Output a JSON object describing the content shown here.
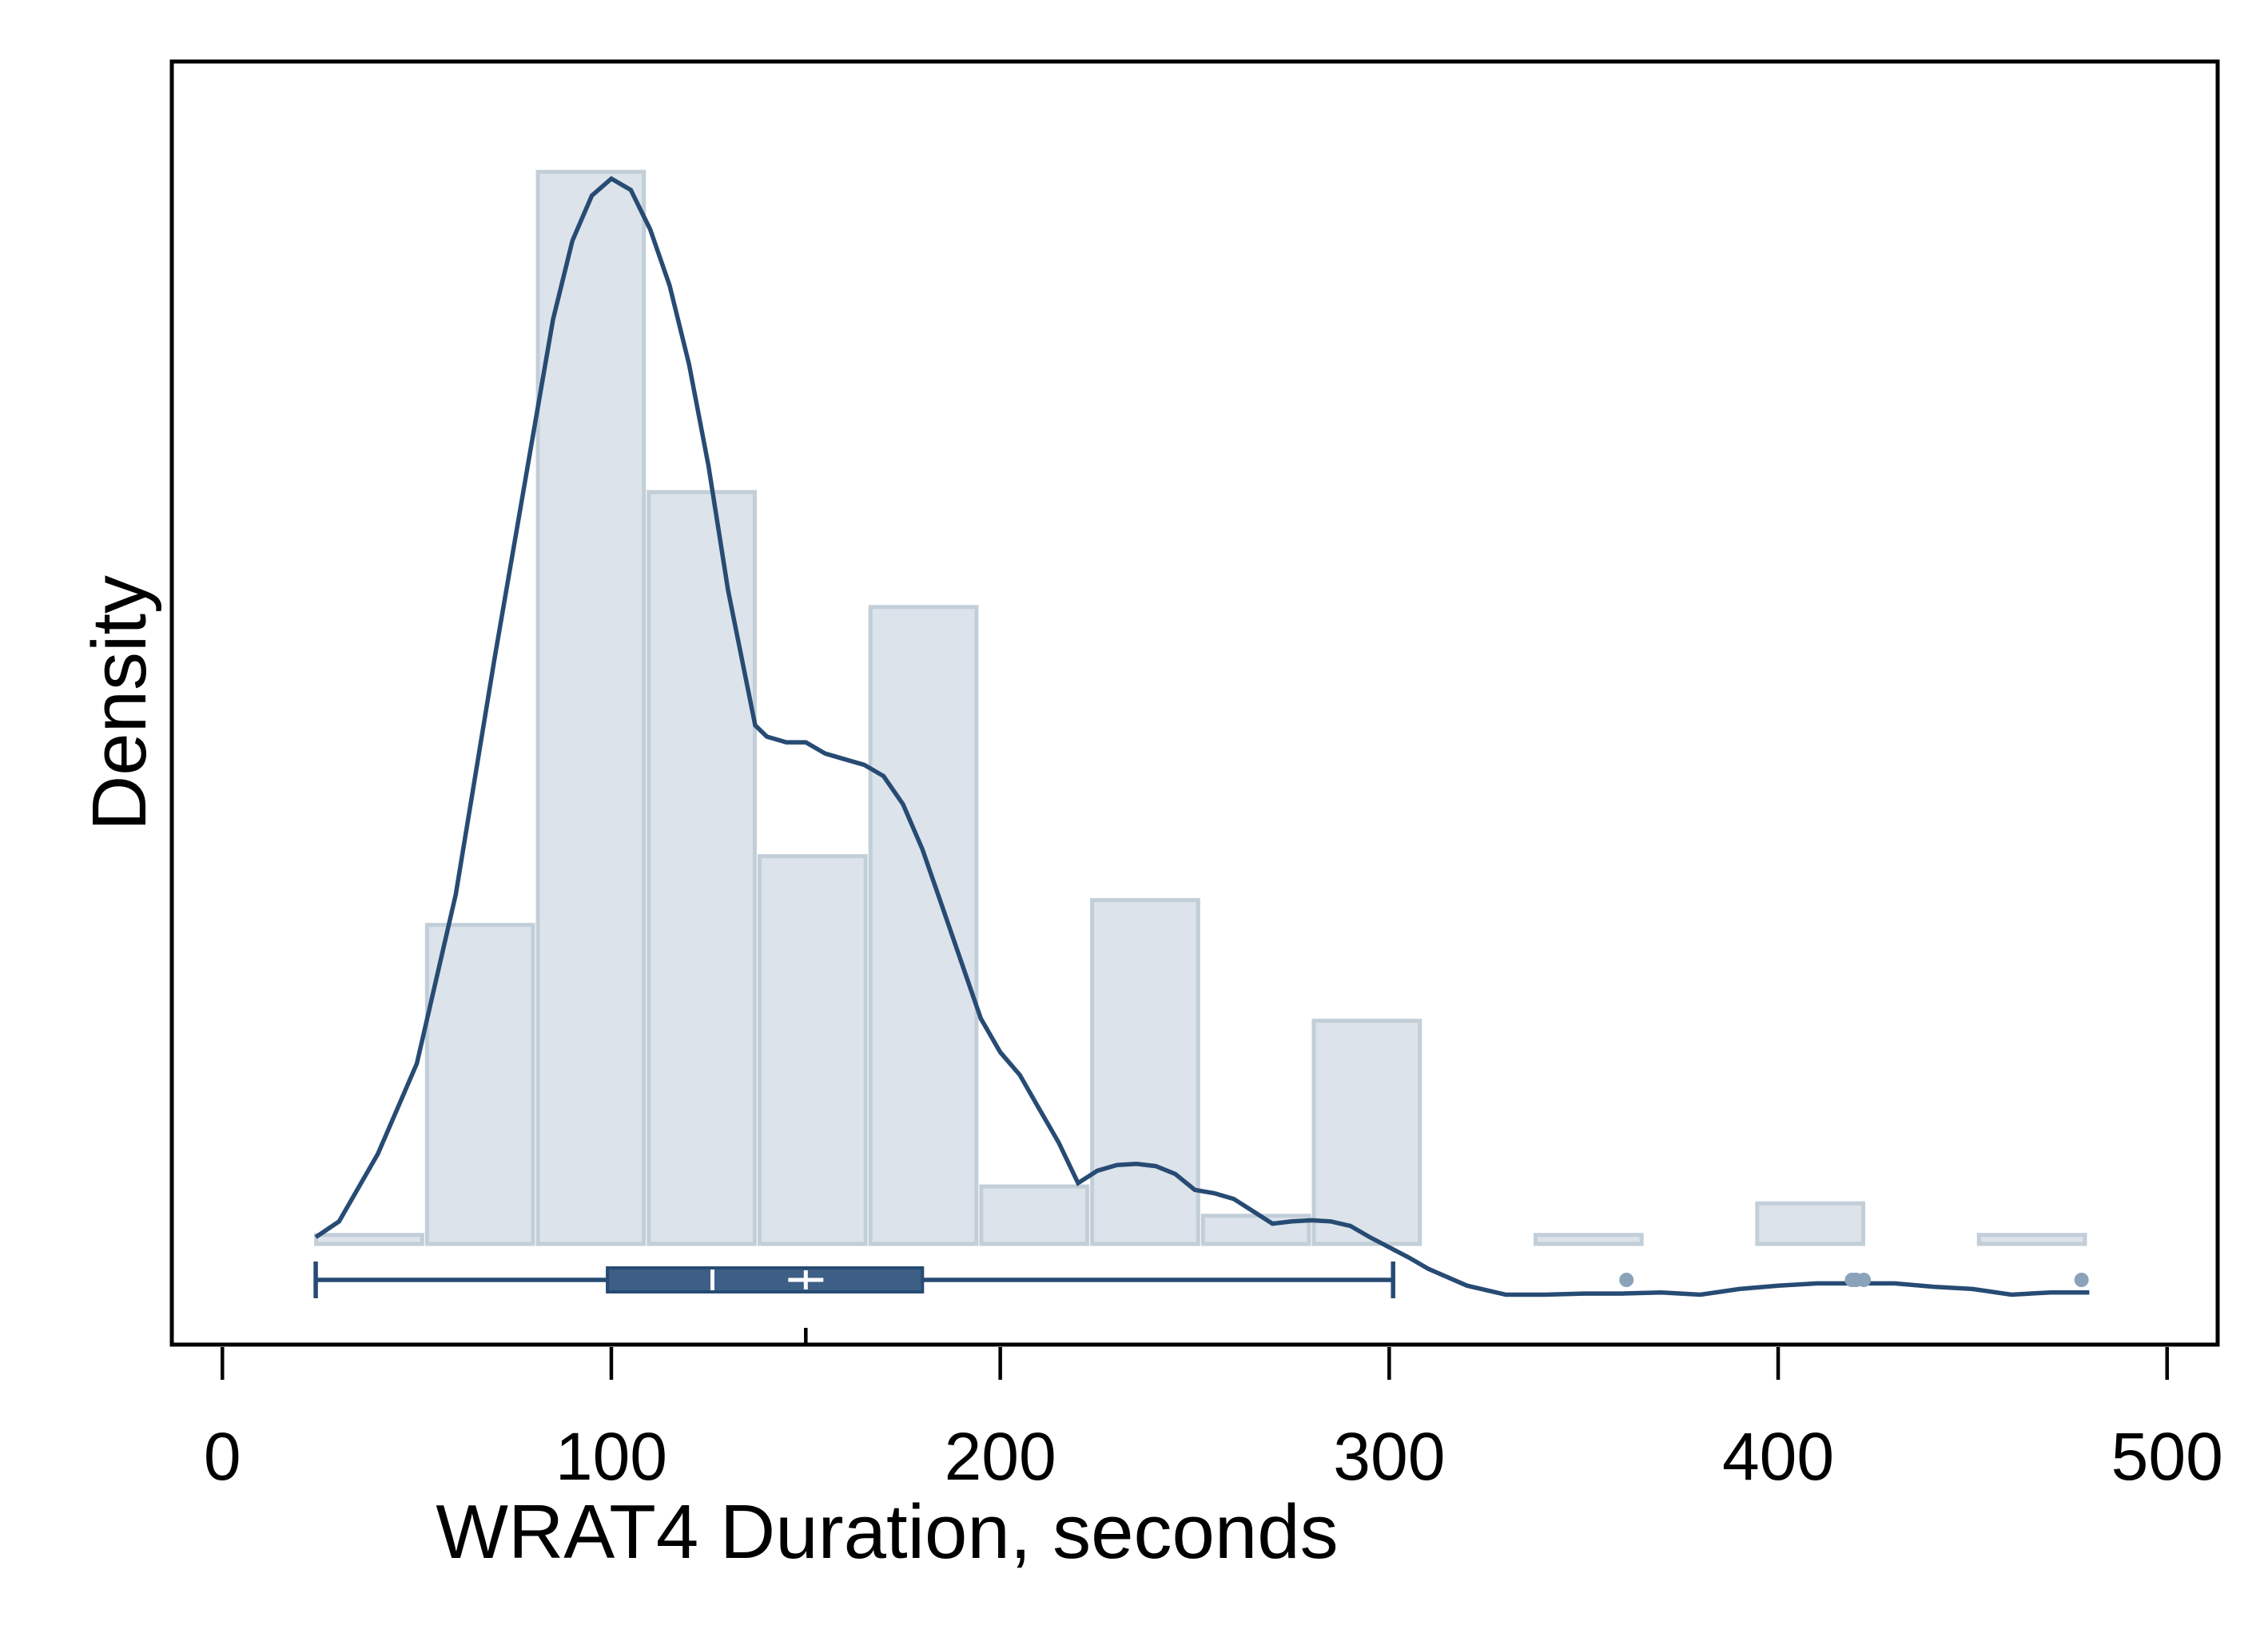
{
  "chart_data": {
    "type": "bar",
    "xlabel": "WRAT4 Duration, seconds",
    "ylabel": "Density",
    "xlim": [
      -13,
      513
    ],
    "ylim": [
      0,
      1
    ],
    "x_ticks": [
      0,
      100,
      200,
      300,
      400,
      500
    ],
    "y_ticks": [],
    "grid": false,
    "colors": {
      "bar_fill": "#dce3ea",
      "bar_edge": "#c2ced8",
      "kde_line": "#274b73",
      "box": "#3d5f85",
      "outlier": "#8aa3ba"
    },
    "histogram": {
      "bins": [
        {
          "from": 23.5,
          "to": 52,
          "density": 0.008
        },
        {
          "from": 52,
          "to": 80.5,
          "density": 0.283
        },
        {
          "from": 80.5,
          "to": 109,
          "density": 0.951
        },
        {
          "from": 109,
          "to": 137.5,
          "density": 0.667
        },
        {
          "from": 137.5,
          "to": 166,
          "density": 0.344
        },
        {
          "from": 166,
          "to": 194.5,
          "density": 0.565
        },
        {
          "from": 194.5,
          "to": 223,
          "density": 0.051
        },
        {
          "from": 223,
          "to": 251.5,
          "density": 0.305
        },
        {
          "from": 251.5,
          "to": 280,
          "density": 0.025
        },
        {
          "from": 280,
          "to": 308.5,
          "density": 0.198
        },
        {
          "from": 308.5,
          "to": 337,
          "density": 0
        },
        {
          "from": 337,
          "to": 365.5,
          "density": 0.008
        },
        {
          "from": 365.5,
          "to": 394,
          "density": 0
        },
        {
          "from": 394,
          "to": 422.5,
          "density": 0.036
        },
        {
          "from": 422.5,
          "to": 451,
          "density": 0
        },
        {
          "from": 451,
          "to": 479.5,
          "density": 0.008
        }
      ]
    },
    "density_curve": {
      "x": [
        24,
        30,
        40,
        50,
        60,
        70,
        80,
        85,
        90,
        95,
        100,
        105,
        110,
        115,
        120,
        125,
        130,
        137,
        140,
        145,
        150,
        155,
        160,
        165,
        170,
        175,
        180,
        185,
        190,
        195,
        200,
        205,
        210,
        215,
        220,
        225,
        230,
        235,
        240,
        245,
        250,
        255,
        260,
        265,
        270,
        275,
        280,
        285,
        290,
        295,
        300,
        305,
        310,
        320,
        330,
        340,
        350,
        360,
        370,
        380,
        390,
        400,
        410,
        420,
        430,
        440,
        450,
        460,
        470,
        480
      ],
      "y": [
        0.006,
        0.02,
        0.08,
        0.16,
        0.31,
        0.52,
        0.72,
        0.82,
        0.89,
        0.93,
        0.945,
        0.935,
        0.9,
        0.85,
        0.78,
        0.69,
        0.58,
        0.46,
        0.45,
        0.445,
        0.445,
        0.435,
        0.43,
        0.425,
        0.415,
        0.39,
        0.35,
        0.3,
        0.25,
        0.2,
        0.17,
        0.15,
        0.12,
        0.09,
        0.054,
        0.065,
        0.07,
        0.071,
        0.069,
        0.062,
        0.048,
        0.045,
        0.04,
        0.029,
        0.018,
        0.02,
        0.021,
        0.02,
        0.016,
        0.006,
        -0.003,
        -0.012,
        -0.022,
        -0.037,
        -0.045,
        -0.045,
        -0.044,
        -0.044,
        -0.043,
        -0.045,
        -0.04,
        -0.037,
        -0.035,
        -0.035,
        -0.035,
        -0.038,
        -0.04,
        -0.045,
        -0.043,
        -0.043
      ]
    },
    "boxplot": {
      "whisker_low": 24,
      "q1": 99,
      "median": 126,
      "mean": 150,
      "q3": 180,
      "whisker_high": 301,
      "outliers": [
        361,
        419,
        420,
        422,
        478
      ]
    }
  }
}
